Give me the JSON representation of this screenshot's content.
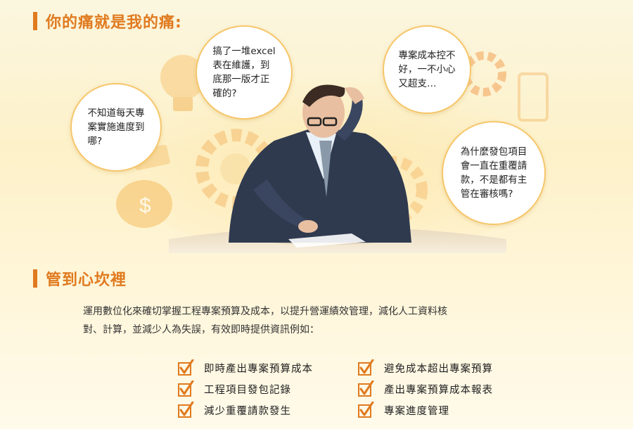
{
  "section1": {
    "title": "你的痛就是我的痛:"
  },
  "bubbles": [
    {
      "lines": [
        "不知道每天專",
        "案實施進度到",
        "哪?"
      ]
    },
    {
      "lines": [
        "搞了一堆excel",
        "表在維護，到",
        "底那一版才正",
        "確的?"
      ]
    },
    {
      "lines": [
        "專案成本控不",
        "好，一不小心",
        "又超支…"
      ]
    },
    {
      "lines": [
        "為什麼發包項目",
        "會一直在重覆請",
        "款，不是都有主",
        "管在審核嗎?"
      ]
    }
  ],
  "section2": {
    "title": "管到心坎裡",
    "desc_lines": [
      "運用數位化來確切掌握工程專案預算及成本，以提升營運績效管理，減化人工資料核",
      "對、計算，並減少人為失誤，有效即時提供資訊例如："
    ]
  },
  "checklist_left": [
    "即時產出專案預算成本",
    "工程項目發包記錄",
    "減少重覆請款發生"
  ],
  "checklist_right": [
    "避免成本超出專案預算",
    "產出專案預算成本報表",
    "專案進度管理"
  ],
  "colors": {
    "accent": "#e07a1f",
    "bubble_border": "#f6c66b"
  }
}
